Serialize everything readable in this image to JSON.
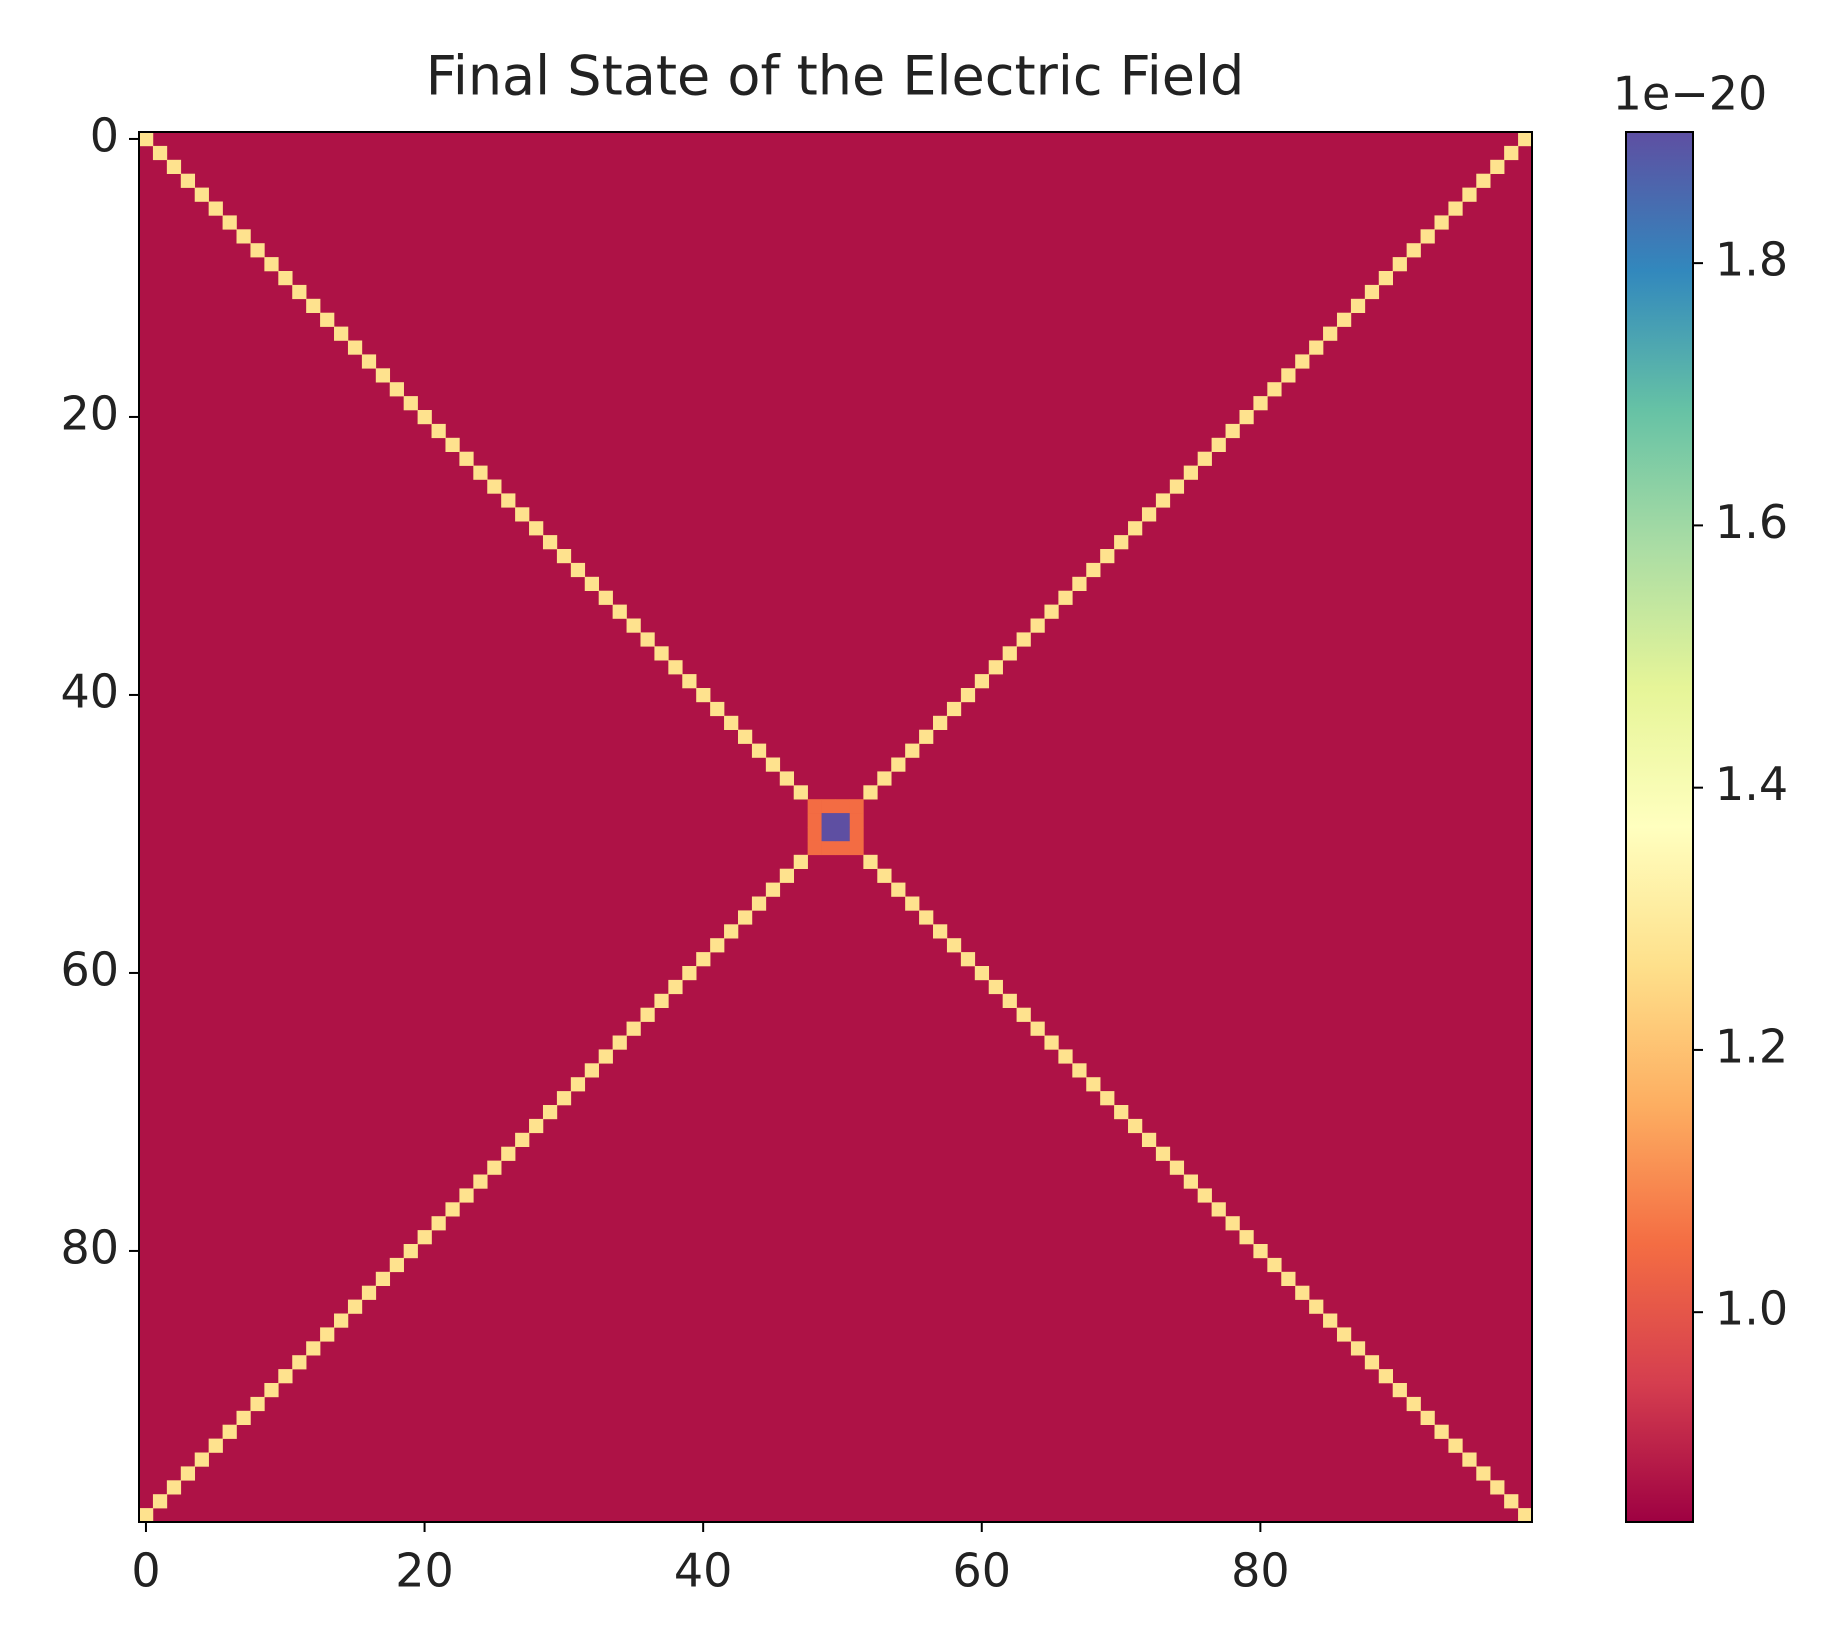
{
  "chart_data": {
    "type": "heatmap",
    "title": "Final State of the Electric Field",
    "colormap": "Spectral",
    "colorbar_offset": "1e−20",
    "xlim": [
      -0.5,
      99.5
    ],
    "ylim": [
      99.5,
      -0.5
    ],
    "xticks": [
      0,
      20,
      40,
      60,
      80
    ],
    "yticks": [
      0,
      20,
      40,
      60,
      80
    ],
    "zlim": [
      0.84,
      1.9
    ],
    "zticks": [
      {
        "value": 1.0,
        "label": "1.0"
      },
      {
        "value": 1.2,
        "label": "1.2"
      },
      {
        "value": 1.4,
        "label": "1.4"
      },
      {
        "value": 1.6,
        "label": "1.6"
      },
      1.8
    ],
    "z_background": 0.87,
    "cells": [
      [
        0,
        0,
        1.27
      ],
      [
        0,
        99,
        1.27
      ],
      [
        1,
        1,
        1.27
      ],
      [
        1,
        98,
        1.27
      ],
      [
        2,
        2,
        1.27
      ],
      [
        2,
        97,
        1.27
      ],
      [
        3,
        3,
        1.27
      ],
      [
        3,
        96,
        1.27
      ],
      [
        4,
        4,
        1.27
      ],
      [
        4,
        95,
        1.27
      ],
      [
        5,
        5,
        1.27
      ],
      [
        5,
        94,
        1.27
      ],
      [
        6,
        6,
        1.27
      ],
      [
        6,
        93,
        1.27
      ],
      [
        7,
        7,
        1.27
      ],
      [
        7,
        92,
        1.27
      ],
      [
        8,
        8,
        1.27
      ],
      [
        8,
        91,
        1.27
      ],
      [
        9,
        9,
        1.27
      ],
      [
        9,
        90,
        1.27
      ],
      [
        10,
        10,
        1.27
      ],
      [
        10,
        89,
        1.27
      ],
      [
        11,
        11,
        1.27
      ],
      [
        11,
        88,
        1.27
      ],
      [
        12,
        12,
        1.27
      ],
      [
        12,
        87,
        1.27
      ],
      [
        13,
        13,
        1.27
      ],
      [
        13,
        86,
        1.27
      ],
      [
        14,
        14,
        1.27
      ],
      [
        14,
        85,
        1.27
      ],
      [
        15,
        15,
        1.27
      ],
      [
        15,
        84,
        1.27
      ],
      [
        16,
        16,
        1.27
      ],
      [
        16,
        83,
        1.27
      ],
      [
        17,
        17,
        1.27
      ],
      [
        17,
        82,
        1.27
      ],
      [
        18,
        18,
        1.27
      ],
      [
        18,
        81,
        1.27
      ],
      [
        19,
        19,
        1.27
      ],
      [
        19,
        80,
        1.27
      ],
      [
        20,
        20,
        1.27
      ],
      [
        20,
        79,
        1.27
      ],
      [
        21,
        21,
        1.27
      ],
      [
        21,
        78,
        1.27
      ],
      [
        22,
        22,
        1.27
      ],
      [
        22,
        77,
        1.27
      ],
      [
        23,
        23,
        1.27
      ],
      [
        23,
        76,
        1.27
      ],
      [
        24,
        24,
        1.27
      ],
      [
        24,
        75,
        1.27
      ],
      [
        25,
        25,
        1.27
      ],
      [
        25,
        74,
        1.27
      ],
      [
        26,
        26,
        1.27
      ],
      [
        26,
        73,
        1.27
      ],
      [
        27,
        27,
        1.27
      ],
      [
        27,
        72,
        1.27
      ],
      [
        28,
        28,
        1.27
      ],
      [
        28,
        71,
        1.27
      ],
      [
        29,
        29,
        1.27
      ],
      [
        29,
        70,
        1.27
      ],
      [
        30,
        30,
        1.27
      ],
      [
        30,
        69,
        1.27
      ],
      [
        31,
        31,
        1.27
      ],
      [
        31,
        68,
        1.27
      ],
      [
        32,
        32,
        1.27
      ],
      [
        32,
        67,
        1.27
      ],
      [
        33,
        33,
        1.27
      ],
      [
        33,
        66,
        1.27
      ],
      [
        34,
        34,
        1.27
      ],
      [
        34,
        65,
        1.27
      ],
      [
        35,
        35,
        1.27
      ],
      [
        35,
        64,
        1.27
      ],
      [
        36,
        36,
        1.27
      ],
      [
        36,
        63,
        1.27
      ],
      [
        37,
        37,
        1.27
      ],
      [
        37,
        62,
        1.27
      ],
      [
        38,
        38,
        1.27
      ],
      [
        38,
        61,
        1.27
      ],
      [
        39,
        39,
        1.27
      ],
      [
        39,
        60,
        1.27
      ],
      [
        40,
        40,
        1.27
      ],
      [
        40,
        59,
        1.27
      ],
      [
        41,
        41,
        1.27
      ],
      [
        41,
        58,
        1.27
      ],
      [
        42,
        42,
        1.27
      ],
      [
        42,
        57,
        1.27
      ],
      [
        43,
        43,
        1.27
      ],
      [
        43,
        56,
        1.27
      ],
      [
        44,
        44,
        1.27
      ],
      [
        44,
        55,
        1.27
      ],
      [
        45,
        45,
        1.27
      ],
      [
        45,
        54,
        1.27
      ],
      [
        46,
        46,
        1.27
      ],
      [
        46,
        53,
        1.27
      ],
      [
        47,
        47,
        1.27
      ],
      [
        47,
        52,
        1.27
      ],
      [
        48,
        48,
        1.05
      ],
      [
        48,
        49,
        1.05
      ],
      [
        48,
        50,
        1.05
      ],
      [
        48,
        51,
        1.05
      ],
      [
        49,
        48,
        1.05
      ],
      [
        49,
        51,
        1.05
      ],
      [
        50,
        48,
        1.05
      ],
      [
        50,
        51,
        1.05
      ],
      [
        51,
        48,
        1.05
      ],
      [
        51,
        49,
        1.05
      ],
      [
        51,
        50,
        1.05
      ],
      [
        51,
        51,
        1.05
      ],
      [
        49,
        49,
        1.9
      ],
      [
        49,
        50,
        1.9
      ],
      [
        50,
        49,
        1.9
      ],
      [
        50,
        50,
        1.9
      ],
      [
        52,
        52,
        1.27
      ],
      [
        52,
        47,
        1.27
      ],
      [
        53,
        53,
        1.27
      ],
      [
        53,
        46,
        1.27
      ],
      [
        54,
        54,
        1.27
      ],
      [
        54,
        45,
        1.27
      ],
      [
        55,
        55,
        1.27
      ],
      [
        55,
        44,
        1.27
      ],
      [
        56,
        56,
        1.27
      ],
      [
        56,
        43,
        1.27
      ],
      [
        57,
        57,
        1.27
      ],
      [
        57,
        42,
        1.27
      ],
      [
        58,
        58,
        1.27
      ],
      [
        58,
        41,
        1.27
      ],
      [
        59,
        59,
        1.27
      ],
      [
        59,
        40,
        1.27
      ],
      [
        60,
        60,
        1.27
      ],
      [
        60,
        39,
        1.27
      ],
      [
        61,
        61,
        1.27
      ],
      [
        61,
        38,
        1.27
      ],
      [
        62,
        62,
        1.27
      ],
      [
        62,
        37,
        1.27
      ],
      [
        63,
        63,
        1.27
      ],
      [
        63,
        36,
        1.27
      ],
      [
        64,
        64,
        1.27
      ],
      [
        64,
        35,
        1.27
      ],
      [
        65,
        65,
        1.27
      ],
      [
        65,
        34,
        1.27
      ],
      [
        66,
        66,
        1.27
      ],
      [
        66,
        33,
        1.27
      ],
      [
        67,
        67,
        1.27
      ],
      [
        67,
        32,
        1.27
      ],
      [
        68,
        68,
        1.27
      ],
      [
        68,
        31,
        1.27
      ],
      [
        69,
        69,
        1.27
      ],
      [
        69,
        30,
        1.27
      ],
      [
        70,
        70,
        1.27
      ],
      [
        70,
        29,
        1.27
      ],
      [
        71,
        71,
        1.27
      ],
      [
        71,
        28,
        1.27
      ],
      [
        72,
        72,
        1.27
      ],
      [
        72,
        27,
        1.27
      ],
      [
        73,
        73,
        1.27
      ],
      [
        73,
        26,
        1.27
      ],
      [
        74,
        74,
        1.27
      ],
      [
        74,
        25,
        1.27
      ],
      [
        75,
        75,
        1.27
      ],
      [
        75,
        24,
        1.27
      ],
      [
        76,
        76,
        1.27
      ],
      [
        76,
        23,
        1.27
      ],
      [
        77,
        77,
        1.27
      ],
      [
        77,
        22,
        1.27
      ],
      [
        78,
        78,
        1.27
      ],
      [
        78,
        21,
        1.27
      ],
      [
        79,
        79,
        1.27
      ],
      [
        79,
        20,
        1.27
      ],
      [
        80,
        80,
        1.27
      ],
      [
        80,
        19,
        1.27
      ],
      [
        81,
        81,
        1.27
      ],
      [
        81,
        18,
        1.27
      ],
      [
        82,
        82,
        1.27
      ],
      [
        82,
        17,
        1.27
      ],
      [
        83,
        83,
        1.27
      ],
      [
        83,
        16,
        1.27
      ],
      [
        84,
        84,
        1.27
      ],
      [
        84,
        15,
        1.27
      ],
      [
        85,
        85,
        1.27
      ],
      [
        85,
        14,
        1.27
      ],
      [
        86,
        86,
        1.27
      ],
      [
        86,
        13,
        1.27
      ],
      [
        87,
        87,
        1.27
      ],
      [
        87,
        12,
        1.27
      ],
      [
        88,
        88,
        1.27
      ],
      [
        88,
        11,
        1.27
      ],
      [
        89,
        89,
        1.27
      ],
      [
        89,
        10,
        1.27
      ],
      [
        90,
        90,
        1.27
      ],
      [
        90,
        9,
        1.27
      ],
      [
        91,
        91,
        1.27
      ],
      [
        91,
        8,
        1.27
      ],
      [
        92,
        92,
        1.27
      ],
      [
        92,
        7,
        1.27
      ],
      [
        93,
        93,
        1.27
      ],
      [
        93,
        6,
        1.27
      ],
      [
        94,
        94,
        1.27
      ],
      [
        94,
        5,
        1.27
      ],
      [
        95,
        95,
        1.27
      ],
      [
        95,
        4,
        1.27
      ],
      [
        96,
        96,
        1.27
      ],
      [
        96,
        3,
        1.27
      ],
      [
        97,
        97,
        1.27
      ],
      [
        97,
        2,
        1.27
      ],
      [
        98,
        98,
        1.27
      ],
      [
        98,
        1,
        1.27
      ],
      [
        99,
        99,
        1.27
      ],
      [
        99,
        0,
        1.27
      ]
    ]
  }
}
